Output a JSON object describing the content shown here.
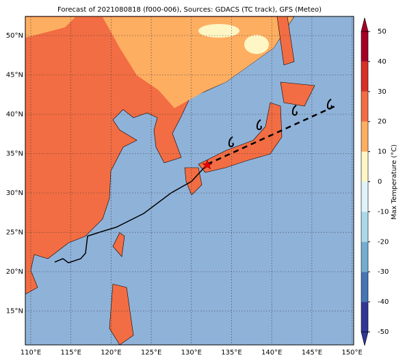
{
  "map": {
    "title": "Forecast of 2021080818 (f000-006), Sources: GDACS (TC track), GFS (Meteo)",
    "lat_labels": [
      "50°N",
      "45°N",
      "40°N",
      "35°N",
      "30°N",
      "25°N",
      "20°N",
      "15°N"
    ],
    "lon_labels": [
      "110°E",
      "115°E",
      "120°E",
      "125°E",
      "130°E",
      "135°E",
      "140°E",
      "145°E",
      "150°E"
    ]
  },
  "colorbar": {
    "label": "Max Temperature (°C)",
    "lim": [
      -50,
      50
    ],
    "ticks": [
      -50,
      -40,
      -30,
      -20,
      -10,
      0,
      10,
      20,
      30,
      40,
      50
    ],
    "colors": [
      "#313695",
      "#4575b4",
      "#74add1",
      "#abd9e9",
      "#e0f3f8",
      "#fef6c4",
      "#fdae61",
      "#f26d43",
      "#d73027",
      "#a50026"
    ]
  }
}
